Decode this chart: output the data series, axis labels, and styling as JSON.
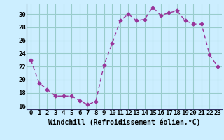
{
  "x": [
    0,
    1,
    2,
    3,
    4,
    5,
    6,
    7,
    8,
    9,
    10,
    11,
    12,
    13,
    14,
    15,
    16,
    17,
    18,
    19,
    20,
    21,
    22,
    23
  ],
  "y": [
    23.0,
    19.5,
    18.5,
    17.5,
    17.5,
    17.5,
    16.8,
    16.2,
    16.7,
    22.2,
    25.5,
    29.0,
    30.0,
    29.0,
    29.2,
    31.0,
    29.8,
    30.2,
    30.5,
    29.0,
    28.5,
    28.5,
    23.8,
    22.0
  ],
  "line_color": "#993399",
  "marker": "D",
  "markersize": 2.5,
  "linewidth": 1.0,
  "bg_color": "#cceeff",
  "grid_color": "#99cccc",
  "xlabel": "Windchill (Refroidissement éolien,°C)",
  "xlabel_fontsize": 7,
  "ylabel_ticks": [
    16,
    18,
    20,
    22,
    24,
    26,
    28,
    30
  ],
  "xlim": [
    -0.5,
    23.5
  ],
  "ylim": [
    15.5,
    31.5
  ],
  "tick_fontsize": 6.5,
  "xtick_labels": [
    "0",
    "1",
    "2",
    "3",
    "4",
    "5",
    "6",
    "7",
    "8",
    "9",
    "10",
    "11",
    "12",
    "13",
    "14",
    "15",
    "16",
    "17",
    "18",
    "19",
    "20",
    "21",
    "22",
    "23"
  ]
}
